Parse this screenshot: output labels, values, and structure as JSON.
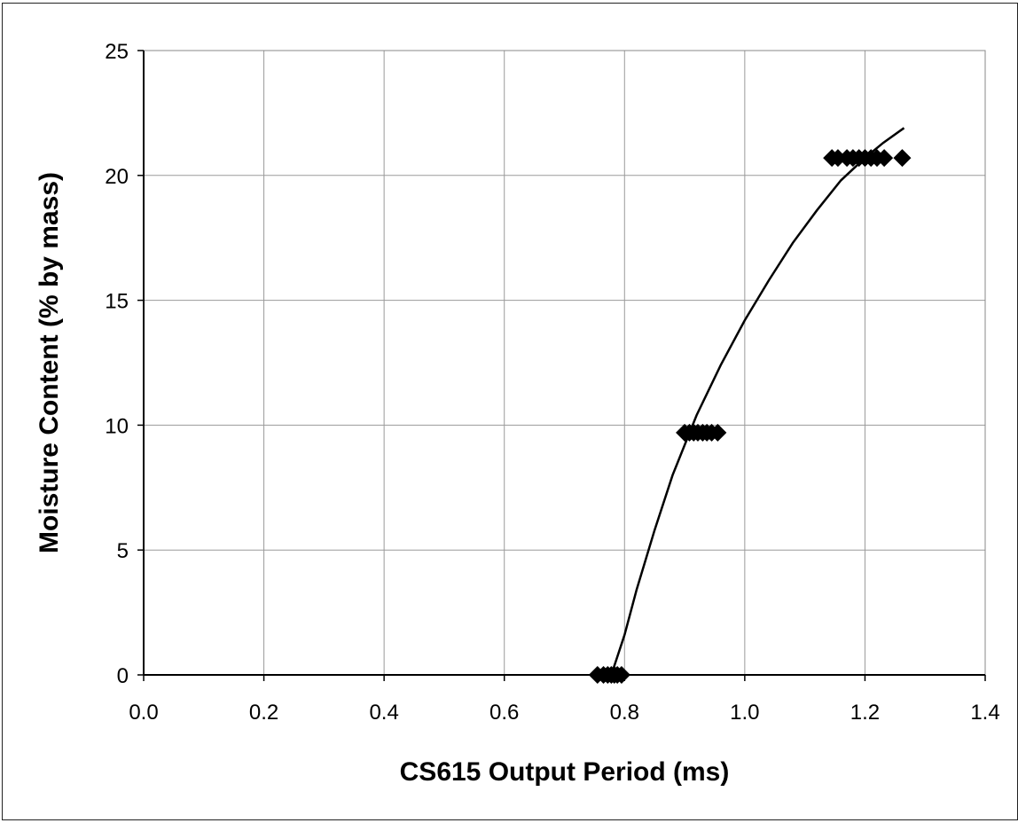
{
  "chart_data": {
    "type": "scatter",
    "title": "",
    "xlabel": "CS615 Output Period (ms)",
    "ylabel": "Moisture Content (% by mass)",
    "xlim": [
      0.0,
      1.4
    ],
    "ylim": [
      0,
      25
    ],
    "x_ticks": [
      "0.0",
      "0.2",
      "0.4",
      "0.6",
      "0.8",
      "1.0",
      "1.2",
      "1.4"
    ],
    "y_ticks": [
      "0",
      "5",
      "10",
      "15",
      "20",
      "25"
    ],
    "grid": true,
    "legend": "none",
    "series": [
      {
        "marker": "diamond",
        "color": "#000000",
        "points": [
          [
            0.755,
            0
          ],
          [
            0.765,
            0
          ],
          [
            0.772,
            0
          ],
          [
            0.778,
            0
          ],
          [
            0.783,
            0
          ],
          [
            0.788,
            0
          ],
          [
            0.795,
            0
          ],
          [
            0.9,
            9.7
          ],
          [
            0.908,
            9.7
          ],
          [
            0.915,
            9.7
          ],
          [
            0.922,
            9.7
          ],
          [
            0.93,
            9.7
          ],
          [
            0.937,
            9.7
          ],
          [
            0.945,
            9.7
          ],
          [
            0.955,
            9.7
          ],
          [
            1.145,
            20.7
          ],
          [
            1.155,
            20.7
          ],
          [
            1.17,
            20.7
          ],
          [
            1.18,
            20.7
          ],
          [
            1.19,
            20.7
          ],
          [
            1.2,
            20.7
          ],
          [
            1.21,
            20.7
          ],
          [
            1.22,
            20.7
          ],
          [
            1.232,
            20.7
          ],
          [
            1.262,
            20.7
          ]
        ]
      },
      {
        "type": "line",
        "color": "#000000",
        "points": [
          [
            0.778,
            0
          ],
          [
            0.8,
            1.6
          ],
          [
            0.82,
            3.4
          ],
          [
            0.85,
            5.8
          ],
          [
            0.88,
            8.0
          ],
          [
            0.92,
            10.4
          ],
          [
            0.96,
            12.4
          ],
          [
            1.0,
            14.2
          ],
          [
            1.04,
            15.8
          ],
          [
            1.08,
            17.3
          ],
          [
            1.12,
            18.6
          ],
          [
            1.16,
            19.8
          ],
          [
            1.2,
            20.7
          ],
          [
            1.23,
            21.3
          ],
          [
            1.265,
            21.9
          ]
        ]
      }
    ]
  }
}
